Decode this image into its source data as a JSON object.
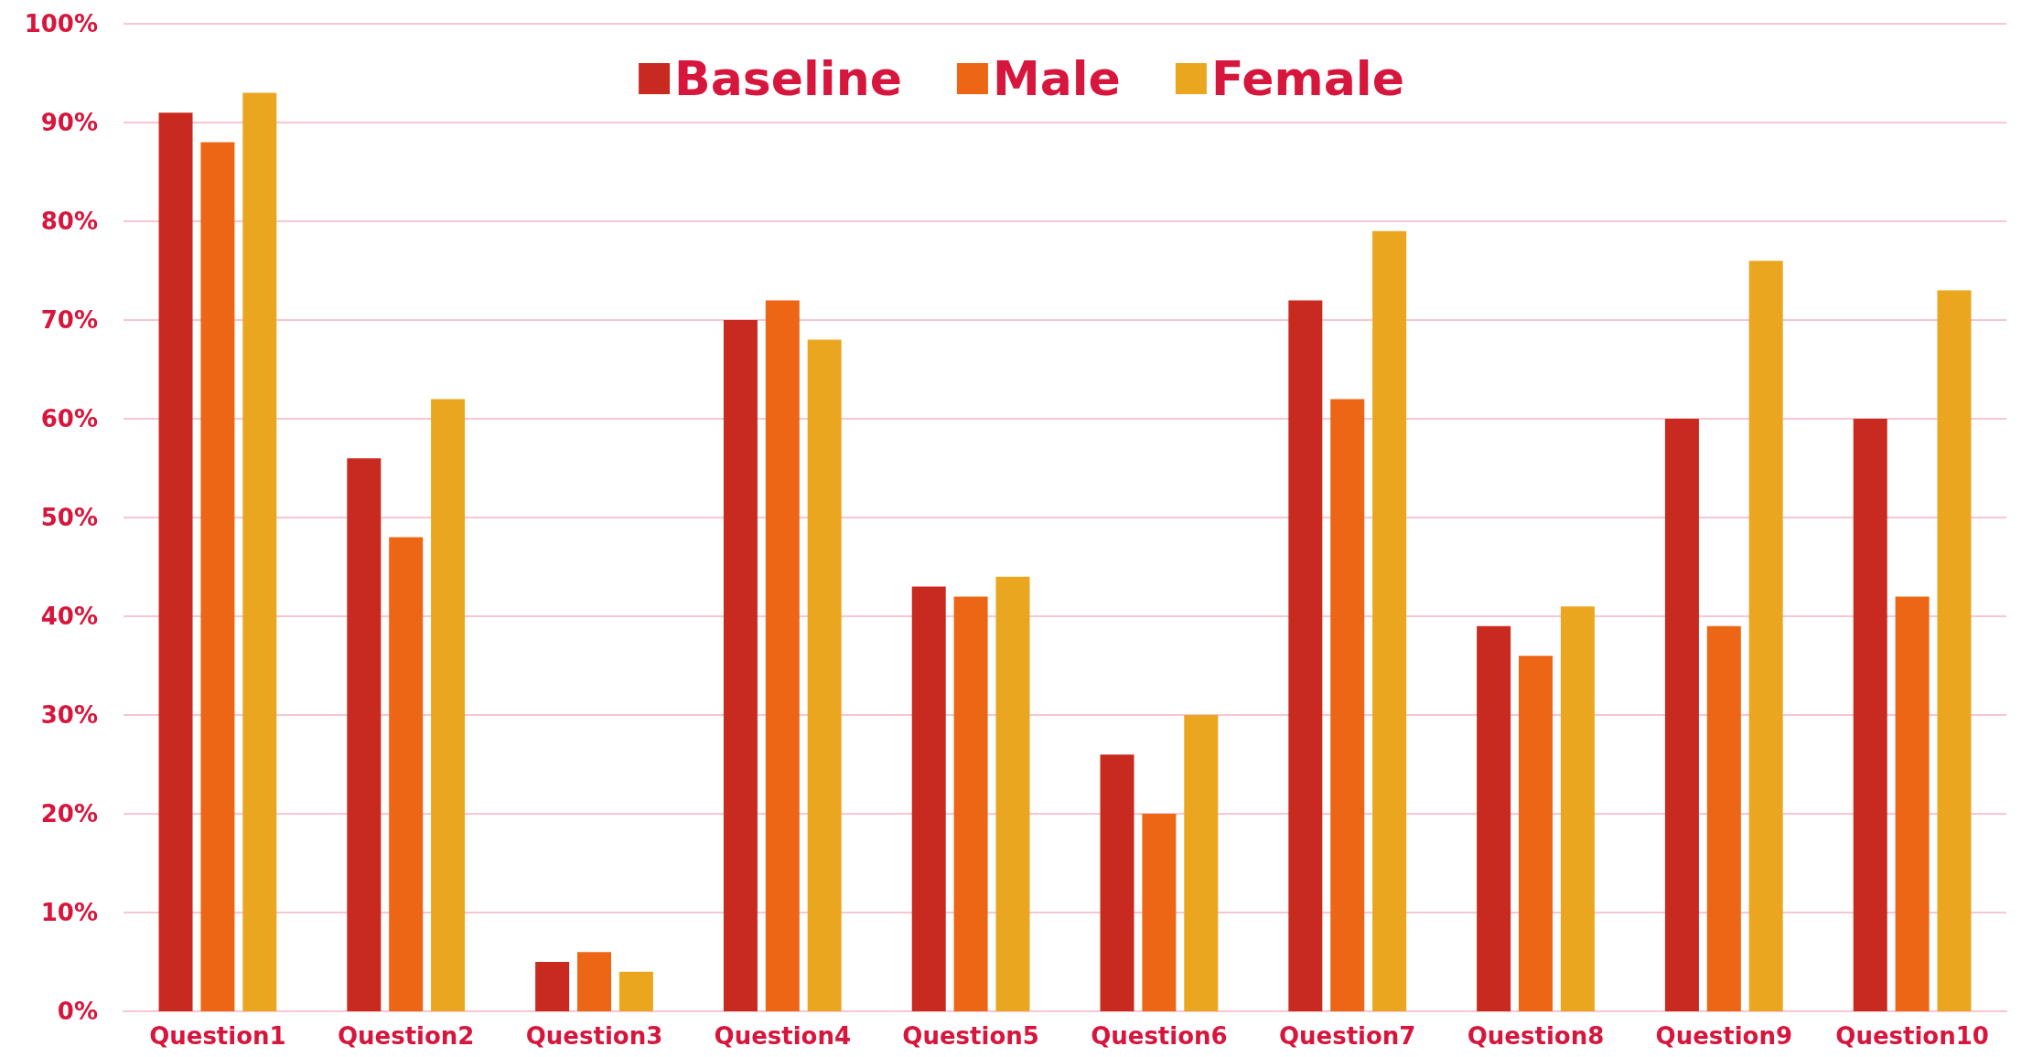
{
  "chart_data": {
    "type": "bar",
    "categories": [
      "Question1",
      "Question2",
      "Question3",
      "Question4",
      "Question5",
      "Question6",
      "Question7",
      "Question8",
      "Question9",
      "Question10"
    ],
    "series": [
      {
        "name": "Baseline",
        "color": "#c92a20",
        "values": [
          91,
          56,
          5,
          70,
          43,
          26,
          72,
          39,
          60,
          60
        ]
      },
      {
        "name": "Male",
        "color": "#ec6616",
        "values": [
          88,
          48,
          6,
          72,
          42,
          20,
          62,
          36,
          39,
          42
        ]
      },
      {
        "name": "Female",
        "color": "#eba620",
        "values": [
          93,
          62,
          4,
          68,
          44,
          30,
          79,
          41,
          76,
          73
        ]
      }
    ],
    "ylim": [
      0,
      100
    ],
    "yticks": [
      {
        "value": 0,
        "label": "0%"
      },
      {
        "value": 10,
        "label": "10%"
      },
      {
        "value": 20,
        "label": "20%"
      },
      {
        "value": 30,
        "label": "30%"
      },
      {
        "value": 40,
        "label": "40%"
      },
      {
        "value": 50,
        "label": "50%"
      },
      {
        "value": 60,
        "label": "60%"
      },
      {
        "value": 70,
        "label": "70%"
      },
      {
        "value": 80,
        "label": "80%"
      },
      {
        "value": 90,
        "label": "90%"
      },
      {
        "value": 100,
        "label": "100%"
      }
    ],
    "grid": "y",
    "legend": "top"
  }
}
